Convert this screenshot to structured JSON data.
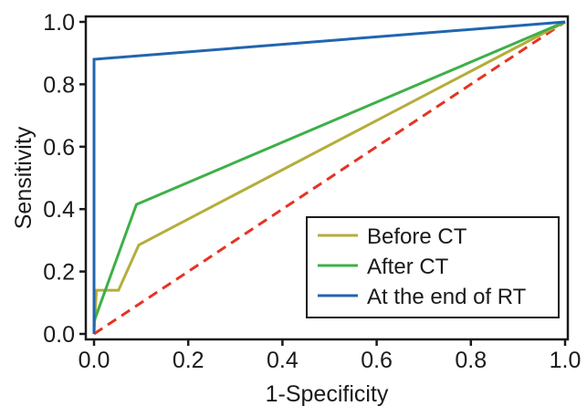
{
  "chart_data": {
    "type": "line",
    "xlabel": "1-Specificity",
    "ylabel": "Sensitivity",
    "xlim": [
      0,
      1
    ],
    "ylim": [
      0,
      1
    ],
    "grid": false,
    "legend_position": "bottom-right",
    "x_ticks": [
      "0.0",
      "0.2",
      "0.4",
      "0.6",
      "0.8",
      "1.0"
    ],
    "y_ticks": [
      "0.0",
      "0.2",
      "0.4",
      "0.6",
      "0.8",
      "1.0"
    ],
    "series": [
      {
        "name": "Before CT",
        "color": "#b5ad3b",
        "style": "solid",
        "points": [
          [
            0,
            0
          ],
          [
            0.005,
            0.14
          ],
          [
            0.052,
            0.14
          ],
          [
            0.095,
            0.285
          ],
          [
            1,
            1
          ]
        ]
      },
      {
        "name": "After CT",
        "color": "#3db048",
        "style": "solid",
        "points": [
          [
            0,
            0.04
          ],
          [
            0.09,
            0.415
          ],
          [
            1,
            1
          ]
        ]
      },
      {
        "name": "At the end of RT",
        "color": "#2165b0",
        "style": "solid",
        "points": [
          [
            0,
            0
          ],
          [
            0,
            0.88
          ],
          [
            1,
            1
          ]
        ]
      }
    ],
    "reference_line": {
      "color": "#e63323",
      "style": "dashed",
      "points": [
        [
          0,
          0
        ],
        [
          1,
          1
        ]
      ]
    }
  }
}
